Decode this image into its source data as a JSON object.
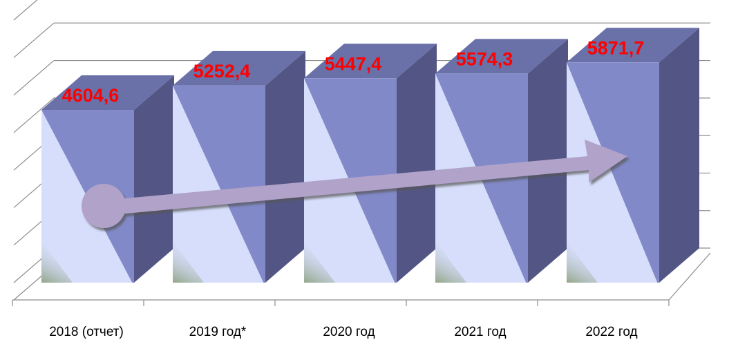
{
  "chart_data": {
    "type": "bar",
    "style": "3d-column-with-trend-arrow",
    "categories": [
      "2018 (отчет)",
      "2019 год*",
      "2020 год",
      "2021 год",
      "2022 год"
    ],
    "values": [
      4604.6,
      5252.4,
      5447.4,
      5574.3,
      5871.7
    ],
    "value_labels": [
      "4604,6",
      "5252,4",
      "5447,4",
      "5574,3",
      "5871,7"
    ],
    "ylim": [
      0,
      7000
    ],
    "grid": true,
    "legend": "none",
    "title": "",
    "xlabel": "",
    "ylabel": ""
  },
  "colors": {
    "bar_front_light": "#d7defb",
    "bar_front_dark": "#8189c8",
    "bar_side": "#535685",
    "bar_top": "#6a70a8",
    "value_label": "#ff0000",
    "arrow": "#b1a2c9",
    "gridline": "#8c8c8c"
  }
}
